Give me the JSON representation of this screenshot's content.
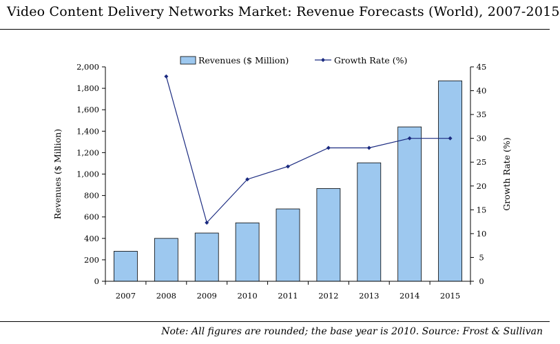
{
  "page": {
    "title": "Video Content Delivery Networks Market: Revenue Forecasts (World), 2007-2015",
    "note": "Note: All figures are rounded; the base year is 2010. Source: Frost & Sullivan"
  },
  "chart_data": {
    "type": "bar",
    "title": "Video Content Delivery Networks Market: Revenue Forecasts (World), 2007-2015",
    "categories": [
      "2007",
      "2008",
      "2009",
      "2010",
      "2011",
      "2012",
      "2013",
      "2014",
      "2015"
    ],
    "series": [
      {
        "name": "Revenues ($ Million)",
        "type": "bar",
        "axis": "left",
        "values": [
          280,
          400,
          450,
          545,
          675,
          865,
          1105,
          1440,
          1870
        ],
        "color": "#9dc8ef"
      },
      {
        "name": "Growth Rate (%)",
        "type": "line",
        "axis": "right",
        "values": [
          null,
          43.0,
          12.3,
          21.4,
          24.1,
          28.0,
          28.0,
          30.0,
          30.0
        ],
        "color": "#1a2a80"
      }
    ],
    "ylabel": "Revenues ($ Million)",
    "y2label": "Growth Rate (%)",
    "ylim": [
      0,
      2000
    ],
    "y2lim": [
      0,
      45
    ],
    "yticks": [
      "0",
      "200",
      "400",
      "600",
      "800",
      "1,000",
      "1,200",
      "1,400",
      "1,600",
      "1,800",
      "2,000"
    ],
    "y2ticks": [
      "0",
      "5",
      "10",
      "15",
      "20",
      "25",
      "30",
      "35",
      "40",
      "45"
    ],
    "legend": "top-center",
    "grid": false
  }
}
